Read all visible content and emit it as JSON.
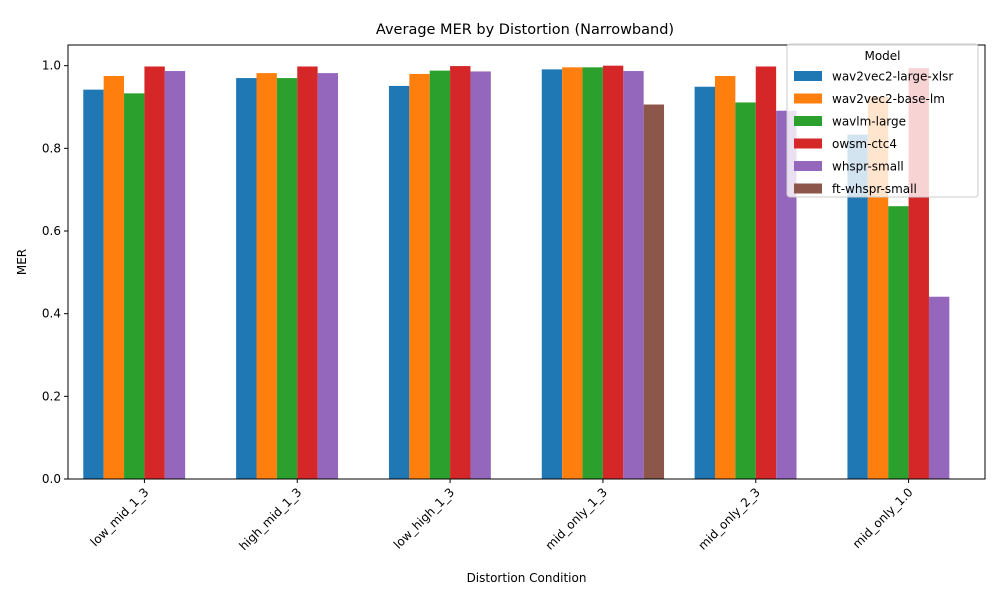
{
  "chart_data": {
    "type": "bar",
    "title": "Average MER by Distortion (Narrowband)",
    "xlabel": "Distortion Condition",
    "ylabel": "MER",
    "ylim": [
      0,
      1.05
    ],
    "yticks": [
      "0.0",
      "0.2",
      "0.4",
      "0.6",
      "0.8",
      "1.0"
    ],
    "grid": false,
    "legend_title": "Model",
    "legend_position": "top-right",
    "categories": [
      "low_mid_1_3",
      "high_mid_1_3",
      "low_high_1_3",
      "mid_only_1_3",
      "mid_only_2_3",
      "mid_only_1.0"
    ],
    "series": [
      {
        "name": "wav2vec2-large-xlsr",
        "color": "#1f77b4",
        "values": [
          0.942,
          0.97,
          0.951,
          0.991,
          0.949,
          0.833
        ]
      },
      {
        "name": "wav2vec2-base-lm",
        "color": "#ff7f0e",
        "values": [
          0.975,
          0.982,
          0.98,
          0.996,
          0.975,
          0.925
        ]
      },
      {
        "name": "wavlm-large",
        "color": "#2ca02c",
        "values": [
          0.933,
          0.97,
          0.988,
          0.996,
          0.911,
          0.66
        ]
      },
      {
        "name": "owsm-ctc4",
        "color": "#d62728",
        "values": [
          0.998,
          0.998,
          0.999,
          1.0,
          0.998,
          0.994
        ]
      },
      {
        "name": "whspr-small",
        "color": "#9467bd",
        "values": [
          0.987,
          0.982,
          0.986,
          0.987,
          0.891,
          0.441
        ]
      },
      {
        "name": "ft-whspr-small",
        "color": "#8c564b",
        "values": [
          null,
          null,
          null,
          0.906,
          null,
          null
        ]
      }
    ]
  }
}
